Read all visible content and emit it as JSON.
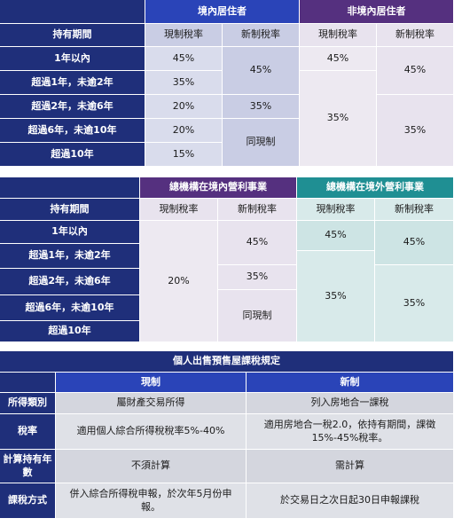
{
  "table1": {
    "resident_header": "境內居住者",
    "nonresident_header": "非境內居住者",
    "holding_period": "持有期間",
    "current_rate": "現制稅率",
    "new_rate": "新制稅率",
    "periods": [
      "1年以內",
      "超過1年，未逾2年",
      "超過2年，未逾6年",
      "超過6年，未逾10年",
      "超過10年"
    ],
    "res_current": [
      "45%",
      "35%",
      "20%",
      "20%",
      "15%"
    ],
    "res_new_45": "45%",
    "res_new_35": "35%",
    "res_new_same": "同現制",
    "nonres_current_45": "45%",
    "nonres_current_35": "35%",
    "nonres_new_45": "45%",
    "nonres_new_35": "35%"
  },
  "table2": {
    "domestic_header": "總機構在境內營利事業",
    "foreign_header": "總機構在境外營利事業",
    "holding_period": "持有期間",
    "current_rate": "現制稅率",
    "new_rate": "新制稅率",
    "periods": [
      "1年以內",
      "超過1年，未逾2年",
      "超過2年，未逾6年",
      "超過6年，未逾10年",
      "超過10年"
    ],
    "dom_current": "20%",
    "dom_new_45": "45%",
    "dom_new_35": "35%",
    "dom_new_same": "同現制",
    "for_current_45": "45%",
    "for_current_35": "35%",
    "for_new_45": "45%",
    "for_new_35": "35%"
  },
  "table3": {
    "title": "個人出售預售屋課稅規定",
    "col_current": "現制",
    "col_new": "新制",
    "rows": [
      {
        "label": "所得類別",
        "current": "屬財產交易所得",
        "new": "列入房地合一課稅"
      },
      {
        "label": "稅率",
        "current": "適用個人綜合所得稅稅率5%-40%",
        "new": "適用房地合一稅2.0，依持有期間，課徵15%-45%稅率。"
      },
      {
        "label": "計算持有年數",
        "current": "不須計算",
        "new": "需計算"
      },
      {
        "label": "課稅方式",
        "current": "併入綜合所得稅申報，於次年5月份申報。",
        "new": "於交易日之次日起30日申報課稅"
      }
    ]
  }
}
